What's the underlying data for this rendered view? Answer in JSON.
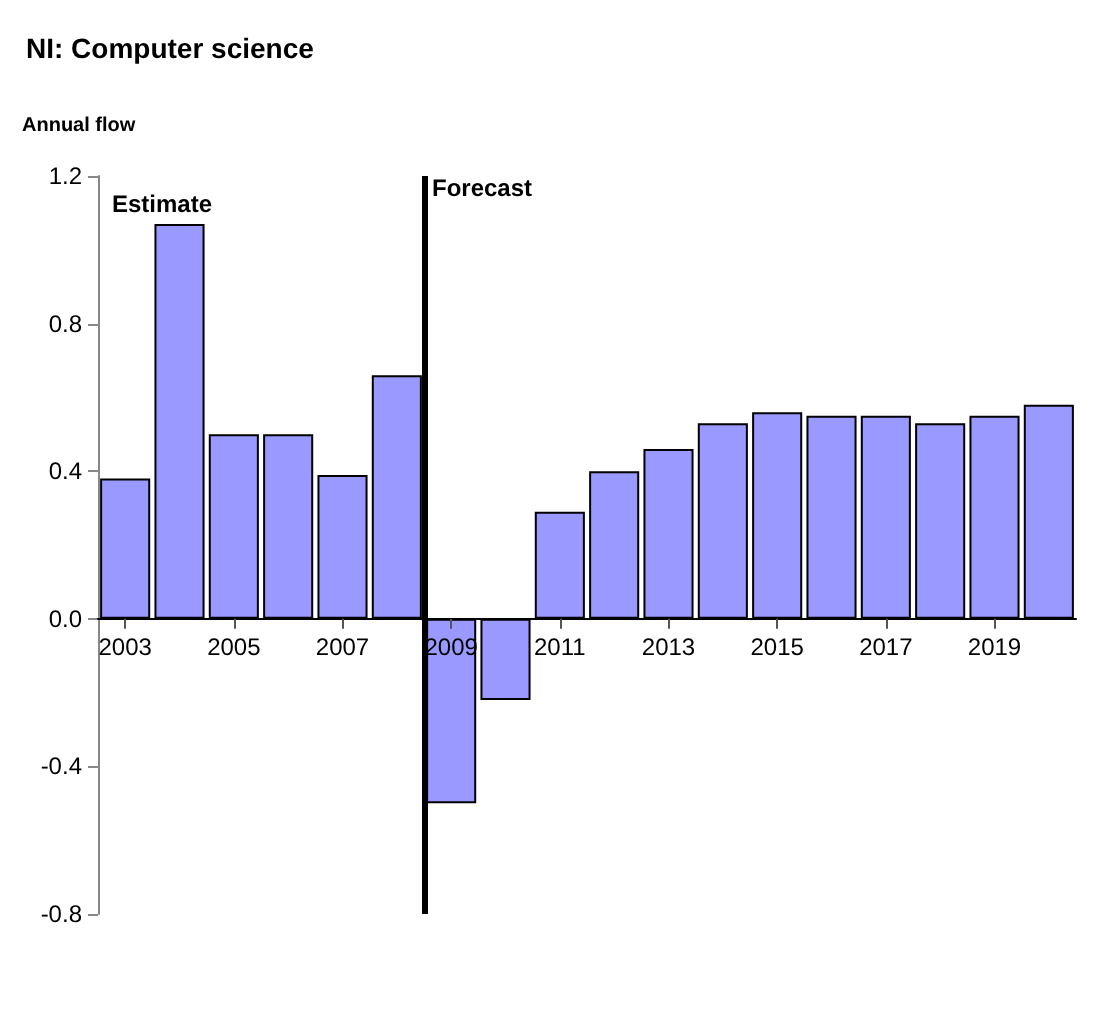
{
  "chart_data": {
    "type": "bar",
    "title": "NI: Computer science",
    "ylabel": "Annual flow",
    "x": [
      2003,
      2004,
      2005,
      2006,
      2007,
      2008,
      2009,
      2010,
      2011,
      2012,
      2013,
      2014,
      2015,
      2016,
      2017,
      2018,
      2019,
      2020
    ],
    "series": [
      {
        "color": "#9999ff",
        "values": [
          0.38,
          1.07,
          0.5,
          0.5,
          0.39,
          0.66,
          -0.5,
          -0.22,
          0.29,
          0.4,
          0.46,
          0.53,
          0.56,
          0.55,
          0.55,
          0.53,
          0.55,
          0.58
        ]
      }
    ],
    "xlim": [
      2002.5,
      2020.5
    ],
    "xticks": [
      2003,
      2005,
      2007,
      2009,
      2011,
      2013,
      2015,
      2017,
      2019
    ],
    "ylim": [
      -0.8,
      1.2
    ],
    "yticks": [
      {
        "value": -0.8,
        "label": "-0.8"
      },
      {
        "value": -0.4,
        "label": "-0.4"
      },
      {
        "value": 0,
        "label": "0.0"
      },
      {
        "value": 0.4,
        "label": "0.4"
      },
      {
        "value": 0.8,
        "label": "0.8"
      },
      {
        "value": 1.2,
        "label": "1.2"
      }
    ],
    "ref_lines": [
      {
        "axis": "x",
        "value": 2008.5,
        "label": "Forecast",
        "color": "#000000"
      }
    ],
    "annotations": [
      "Estimate"
    ]
  }
}
